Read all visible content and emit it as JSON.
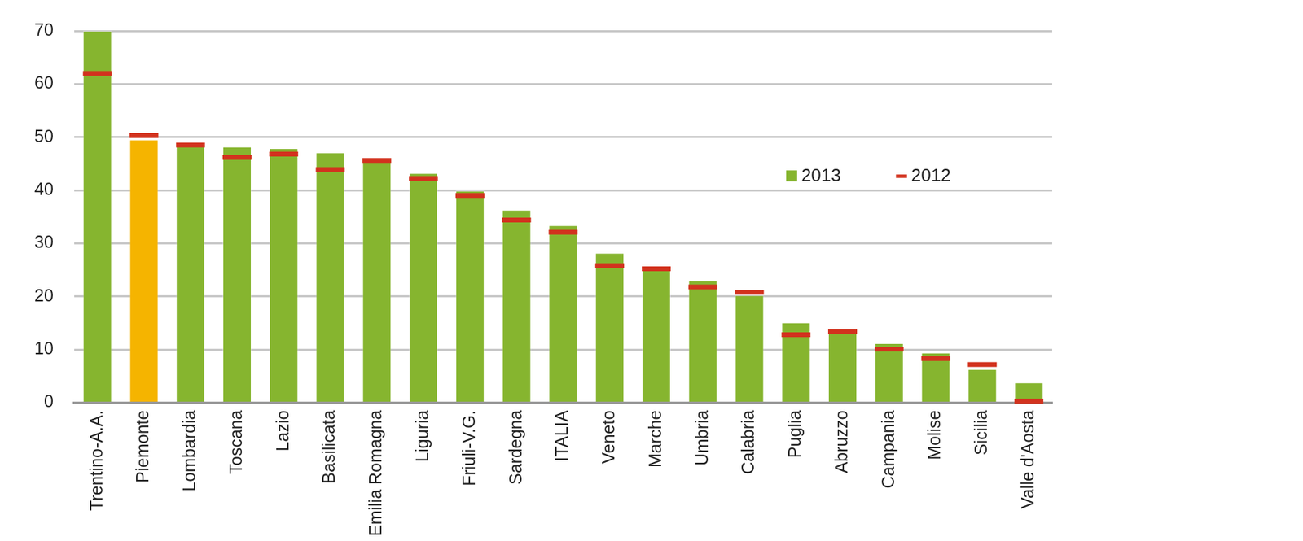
{
  "chart_data": {
    "type": "bar",
    "categories": [
      "Trentino-A.A.",
      "Piemonte",
      "Lombardia",
      "Toscana",
      "Lazio",
      "Basilicata",
      "Emilia Romagna",
      "Liguria",
      "Friuli-V.G.",
      "Sardegna",
      "ITALIA",
      "Veneto",
      "Marche",
      "Umbria",
      "Calabria",
      "Puglia",
      "Abruzzo",
      "Campania",
      "Molise",
      "Sicilia",
      "Valle d'Aosta"
    ],
    "series": [
      {
        "name": "2013",
        "type": "bar",
        "color": "#86b52f",
        "colors": [
          "#86b52f",
          "#f5b400",
          "#86b52f",
          "#86b52f",
          "#86b52f",
          "#86b52f",
          "#86b52f",
          "#86b52f",
          "#86b52f",
          "#86b52f",
          "#86b52f",
          "#86b52f",
          "#86b52f",
          "#86b52f",
          "#86b52f",
          "#86b52f",
          "#86b52f",
          "#86b52f",
          "#86b52f",
          "#86b52f",
          "#86b52f"
        ],
        "values": [
          70,
          49.5,
          49,
          48.2,
          47.9,
          47.1,
          45.3,
          43.2,
          39.9,
          36.3,
          33.4,
          28.2,
          25.4,
          23,
          20.2,
          15.1,
          13.8,
          11.2,
          9.4,
          6.3,
          3.8
        ]
      },
      {
        "name": "2012",
        "type": "line",
        "marker": "dash",
        "line_style": "none",
        "color": "#d2321e",
        "values": [
          62,
          50.3,
          48.5,
          46.2,
          46.8,
          43.9,
          45.6,
          42.2,
          39,
          34.4,
          32.1,
          25.8,
          25.2,
          21.8,
          20.8,
          12.8,
          13.4,
          10.1,
          8.3,
          7.2,
          0.3
        ]
      }
    ],
    "ylim": [
      0,
      70
    ],
    "yticks": [
      0,
      10,
      20,
      30,
      40,
      50,
      60,
      70
    ],
    "grid": true,
    "legend": "upper right"
  }
}
